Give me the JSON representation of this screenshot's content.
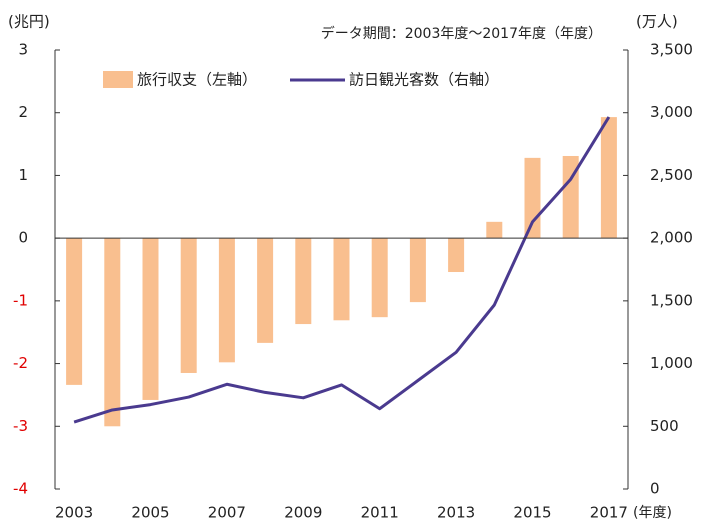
{
  "chart_data": {
    "type": "bar-line",
    "annotations": {
      "left_unit": "(兆円)",
      "right_unit": "(万人)",
      "x_unit": "(年度)",
      "period": "データ期間：2003年度～2017年度（年度）"
    },
    "categories": [
      "2003",
      null,
      "2005",
      null,
      "2007",
      null,
      "2009",
      null,
      "2011",
      null,
      "2013",
      null,
      "2015",
      null,
      "2017"
    ],
    "series": [
      {
        "name": "旅行収支（左軸）",
        "type": "bar",
        "color": "#f9bf8f",
        "values": [
          -2.34,
          -3.0,
          -2.58,
          -2.15,
          -1.98,
          -1.67,
          -1.37,
          -1.31,
          -1.26,
          -1.02,
          -0.54,
          0.26,
          1.28,
          1.31,
          1.93
        ]
      },
      {
        "name": "訪日観光客数（右軸）",
        "type": "line",
        "axis": "y2",
        "color": "#4a3a8f",
        "values": [
          534,
          630,
          673,
          733,
          835,
          770,
          727,
          830,
          640,
          865,
          1090,
          1467,
          2130,
          2470,
          2966
        ]
      }
    ],
    "ylim": [
      -4,
      3
    ],
    "yticks": [
      -4,
      -3,
      -2,
      -1,
      0,
      1,
      2,
      3
    ],
    "negative_tick_color": "#e00000",
    "y2lim": [
      0,
      3500
    ],
    "y2ticks": [
      0,
      500,
      {
        "value": 1000,
        "label": "1,000"
      },
      {
        "value": 1500,
        "label": "1,500"
      },
      {
        "value": 2000,
        "label": "2,000"
      },
      {
        "value": 2500,
        "label": "2,500"
      },
      {
        "value": 3000,
        "label": "3,000"
      },
      {
        "value": 3500,
        "label": "3,500"
      }
    ]
  }
}
